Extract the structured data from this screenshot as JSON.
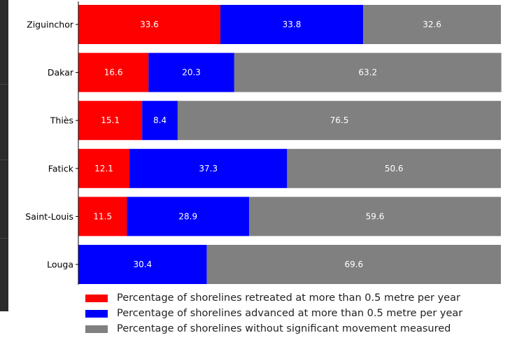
{
  "chart_data": {
    "type": "bar",
    "orientation": "horizontal",
    "stacked": true,
    "categories": [
      "Ziguinchor",
      "Dakar",
      "Thiès",
      "Fatick",
      "Saint-Louis",
      "Louga"
    ],
    "series": [
      {
        "name": "Percentage of shorelines retreated at more than 0.5 metre per year",
        "color": "#ff0000",
        "values": [
          33.6,
          16.6,
          15.1,
          12.1,
          11.5,
          0
        ]
      },
      {
        "name": "Percentage of shorelines advanced at more than 0.5 metre per year",
        "color": "#0000ff",
        "values": [
          33.8,
          20.3,
          8.4,
          37.3,
          28.9,
          30.4
        ]
      },
      {
        "name": "Percentage of shorelines without significant movement measured",
        "color": "#808080",
        "values": [
          32.6,
          63.2,
          76.5,
          50.6,
          59.6,
          69.6
        ]
      }
    ],
    "value_labels": [
      [
        "33.6",
        "16.6",
        "15.1",
        "12.1",
        "11.5",
        "0"
      ],
      [
        "33.8",
        "20.3",
        "8.4",
        "37.3",
        "28.9",
        "30.4"
      ],
      [
        "32.6",
        "63.2",
        "76.5",
        "50.6",
        "59.6",
        "69.6"
      ]
    ],
    "xlim": [
      0,
      100
    ],
    "grid": false,
    "legend_position": "bottom"
  }
}
